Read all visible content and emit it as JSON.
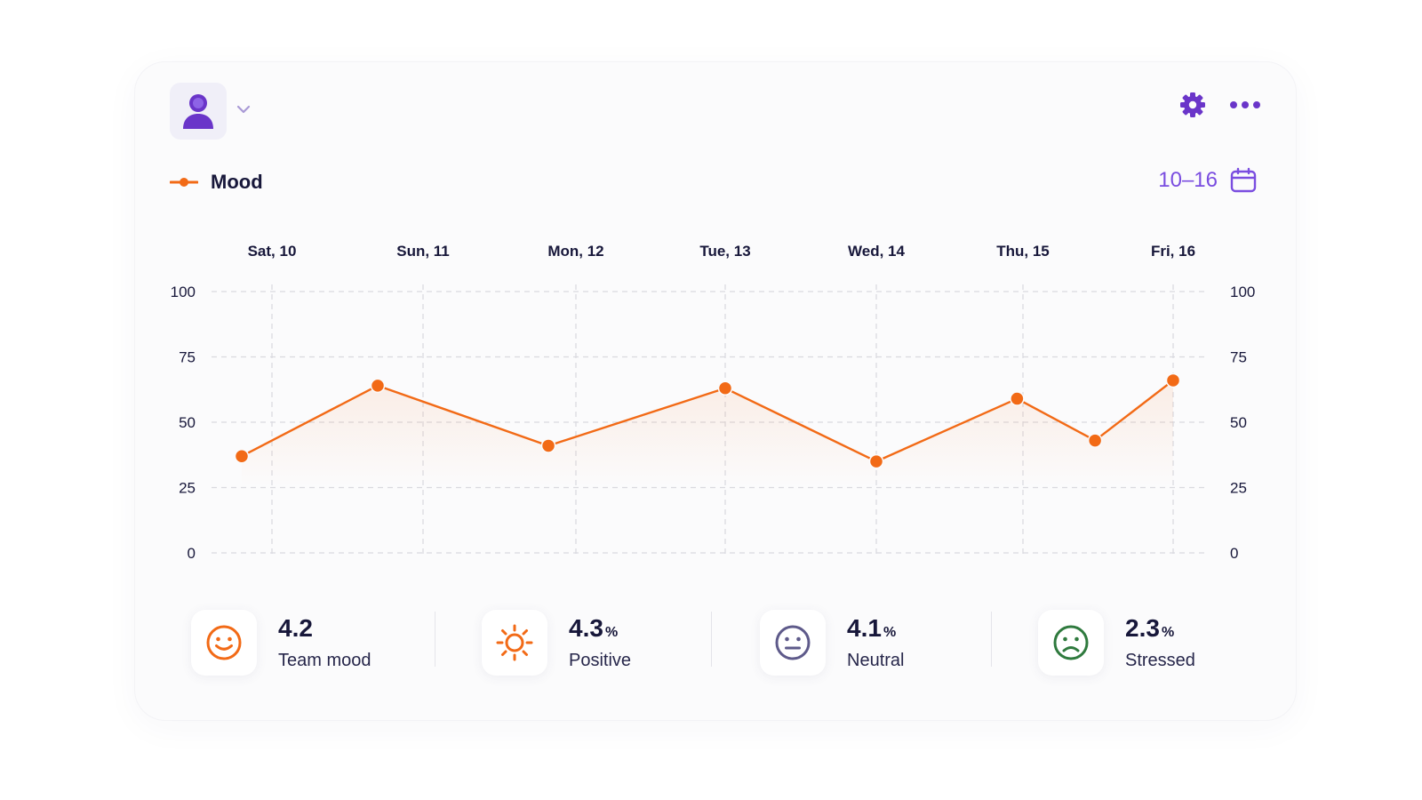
{
  "header": {
    "avatar_icon": "user-avatar-icon",
    "dropdown_icon": "chevron-down-icon",
    "settings_icon": "gear-icon",
    "more_icon": "more-horizontal-icon"
  },
  "legend": {
    "label": "Mood",
    "color": "#f26a16"
  },
  "date_range": {
    "label": "10–16",
    "icon": "calendar-icon"
  },
  "colors": {
    "accent": "#7a4de0",
    "line": "#f26a16",
    "grid": "#d9d9df",
    "text_dark": "#17173a"
  },
  "chart_data": {
    "type": "line",
    "categories": [
      "Sat, 10",
      "Sun, 11",
      "Mon, 12",
      "Tue, 13",
      "Wed, 14",
      "Thu, 15",
      "Fri, 16"
    ],
    "series": [
      {
        "name": "Mood",
        "points": [
          {
            "x": -0.2,
            "y": 37
          },
          {
            "x": 0.7,
            "y": 64
          },
          {
            "x": 1.82,
            "y": 41
          },
          {
            "x": 3.0,
            "y": 63
          },
          {
            "x": 4.0,
            "y": 35
          },
          {
            "x": 4.96,
            "y": 59
          },
          {
            "x": 5.48,
            "y": 43
          },
          {
            "x": 6.0,
            "y": 66
          }
        ]
      }
    ],
    "yticks": [
      "0",
      "25",
      "50",
      "75",
      "100"
    ],
    "ylim": [
      0,
      100
    ],
    "grid": true,
    "dual_y_axis": true,
    "legend_position": "top-left"
  },
  "stats": [
    {
      "value": "4.2",
      "unit": "",
      "label": "Team mood",
      "icon": "smile-icon",
      "color": "#f26a16"
    },
    {
      "value": "4.3",
      "unit": "%",
      "label": "Positive",
      "icon": "sun-icon",
      "color": "#f26a16"
    },
    {
      "value": "4.1",
      "unit": "%",
      "label": "Neutral",
      "icon": "neutral-face-icon",
      "color": "#5e5a8a"
    },
    {
      "value": "2.3",
      "unit": "%",
      "label": "Stressed",
      "icon": "frown-icon",
      "color": "#2f7a3e"
    }
  ]
}
